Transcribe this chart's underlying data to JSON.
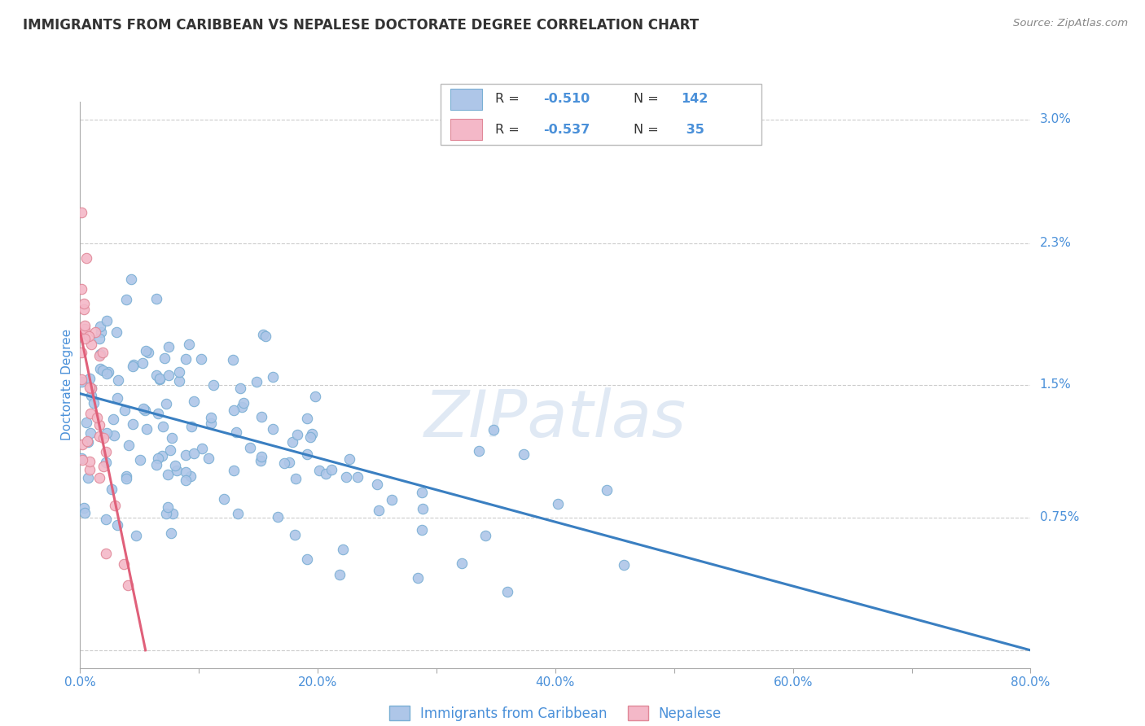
{
  "title": "IMMIGRANTS FROM CARIBBEAN VS NEPALESE DOCTORATE DEGREE CORRELATION CHART",
  "source_text": "Source: ZipAtlas.com",
  "ylabel": "Doctorate Degree",
  "series1_color": "#aec6e8",
  "series1_edge": "#7aafd4",
  "series2_color": "#f4b8c8",
  "series2_edge": "#e08898",
  "line1_color": "#3a7fc1",
  "line2_color": "#e0607a",
  "legend_r1": "R = -0.510",
  "legend_n1": "N = 142",
  "legend_r2": "R = -0.537",
  "legend_n2": "N =  35",
  "legend_label1": "Immigrants from Caribbean",
  "legend_label2": "Nepalese",
  "watermark": "ZIPatlas",
  "grid_color": "#cccccc",
  "title_color": "#333333",
  "axis_label_color": "#4a90d9",
  "tick_label_color": "#4a90d9",
  "background_color": "#ffffff",
  "xmin": 0.0,
  "xmax": 0.8,
  "ymin": -0.001,
  "ymax": 0.031,
  "ytick_positions": [
    0.0,
    0.0075,
    0.015,
    0.023,
    0.03
  ],
  "ytick_labels": [
    "",
    "0.75%",
    "1.5%",
    "2.3%",
    "3.0%"
  ],
  "xtick_positions": [
    0.0,
    0.1,
    0.2,
    0.3,
    0.4,
    0.5,
    0.6,
    0.7,
    0.8
  ],
  "xtick_labels": [
    "0.0%",
    "",
    "20.0%",
    "",
    "40.0%",
    "",
    "60.0%",
    "",
    "80.0%"
  ],
  "seed": 7,
  "n1": 142,
  "n2": 35,
  "line1_x0": 0.0,
  "line1_y0": 0.0145,
  "line1_x1": 0.8,
  "line1_y1": 0.0,
  "line2_x0": 0.0,
  "line2_y0": 0.018,
  "line2_x1": 0.055,
  "line2_y1": 0.0
}
